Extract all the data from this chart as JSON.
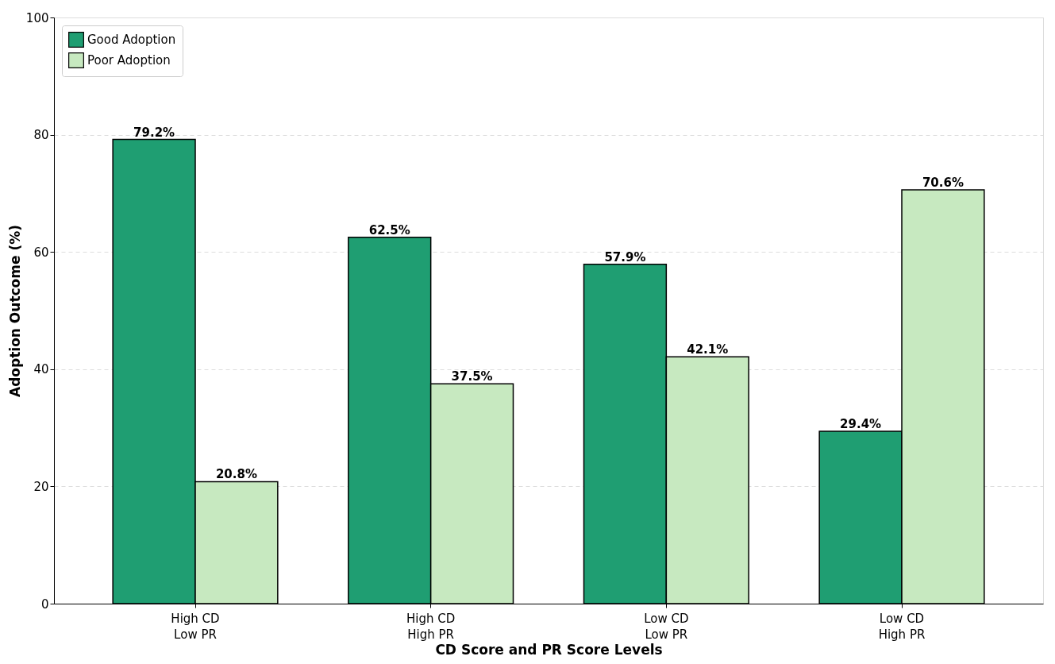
{
  "chart_data": {
    "type": "bar",
    "xlabel": "CD Score and PR Score Levels",
    "ylabel": "Adoption Outcome (%)",
    "categories": [
      "High CD\nLow PR",
      "High CD\nHigh PR",
      "Low CD\nLow PR",
      "Low CD\nHigh PR"
    ],
    "series": [
      {
        "name": "Good Adoption",
        "color": "#1f9e72",
        "values": [
          79.2,
          62.5,
          57.9,
          29.4
        ],
        "value_labels": [
          "79.2%",
          "62.5%",
          "57.9%",
          "29.4%"
        ]
      },
      {
        "name": "Poor Adoption",
        "color": "#c7e9c0",
        "values": [
          20.8,
          37.5,
          42.1,
          70.6
        ],
        "value_labels": [
          "20.8%",
          "37.5%",
          "42.1%",
          "70.6%"
        ]
      }
    ],
    "ylim": [
      0,
      100
    ],
    "yticks": [
      0,
      20,
      40,
      60,
      80,
      100
    ],
    "grid": "y",
    "legend": "top left"
  }
}
